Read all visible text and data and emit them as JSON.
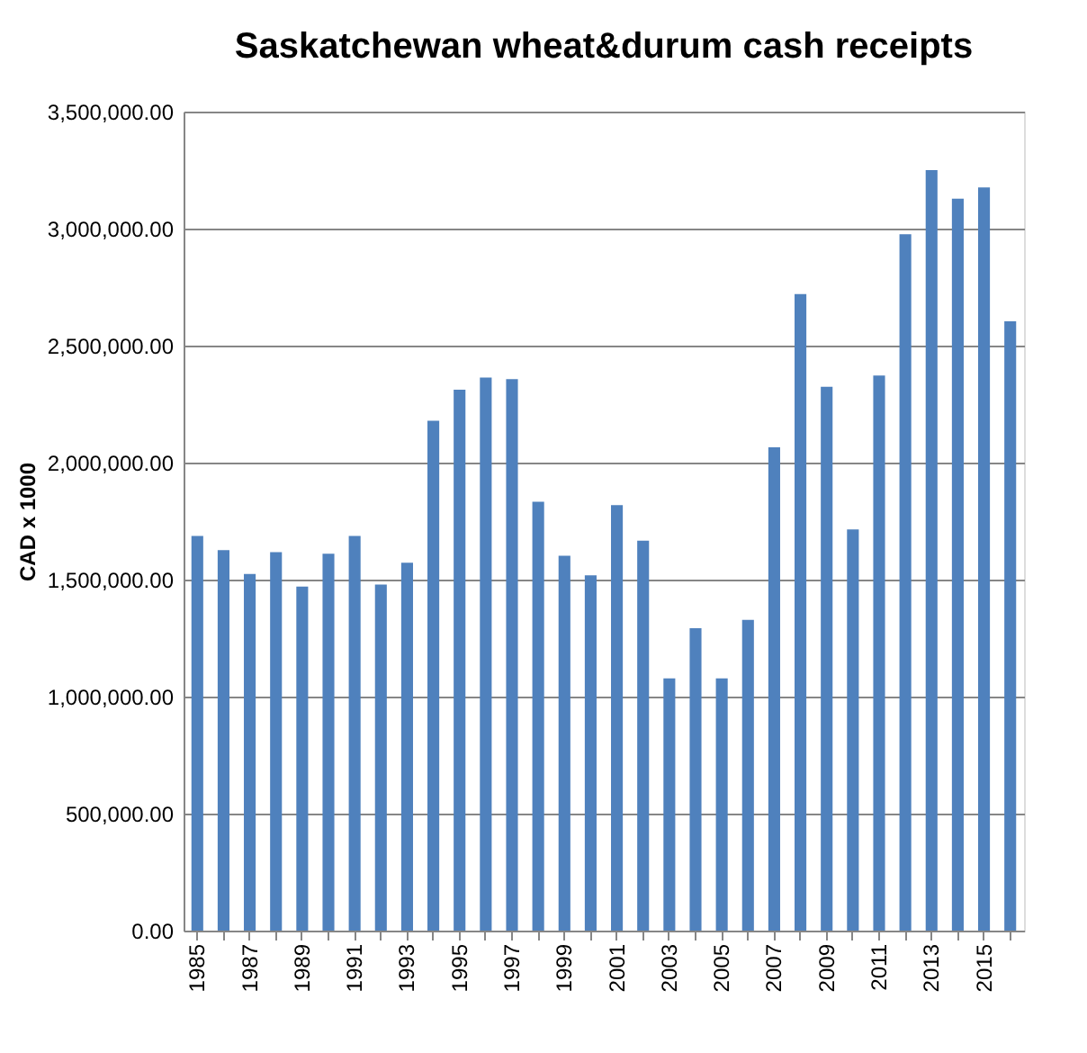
{
  "chart_data": {
    "type": "bar",
    "title": "Saskatchewan wheat&durum cash receipts",
    "ylabel": "CAD x 1000",
    "categories": [
      "1985",
      null,
      "1987",
      null,
      "1989",
      null,
      "1991",
      null,
      "1993",
      null,
      "1995",
      null,
      "1997",
      null,
      "1999",
      null,
      "2001",
      null,
      "2003",
      null,
      "2005",
      null,
      "2007",
      null,
      "2009",
      null,
      "2011",
      null,
      "2013",
      null,
      "2015",
      null
    ],
    "values": [
      1687000,
      1626000,
      1524000,
      1617000,
      1470000,
      1611000,
      1687000,
      1479000,
      1572000,
      2179000,
      2312000,
      2363000,
      2357000,
      1833000,
      1602000,
      1518000,
      1818000,
      1666000,
      1078000,
      1292000,
      1078000,
      1328000,
      2065000,
      2720000,
      2324000,
      1714000,
      2372000,
      2976000,
      3250000,
      3128000,
      3176000,
      2604000
    ],
    "color": "#4f81bd",
    "ylim": [
      0,
      3500000
    ],
    "yticks": [
      {
        "value": 0,
        "label": "0.00"
      },
      {
        "value": 500000,
        "label": "500,000.00"
      },
      {
        "value": 1000000,
        "label": "1,000,000.00"
      },
      {
        "value": 1500000,
        "label": "1,500,000.00"
      },
      {
        "value": 2000000,
        "label": "2,000,000.00"
      },
      {
        "value": 2500000,
        "label": "2,500,000.00"
      },
      {
        "value": 3000000,
        "label": "3,000,000.00"
      },
      {
        "value": 3500000,
        "label": "3,500,000.00"
      }
    ],
    "grid": "y"
  }
}
